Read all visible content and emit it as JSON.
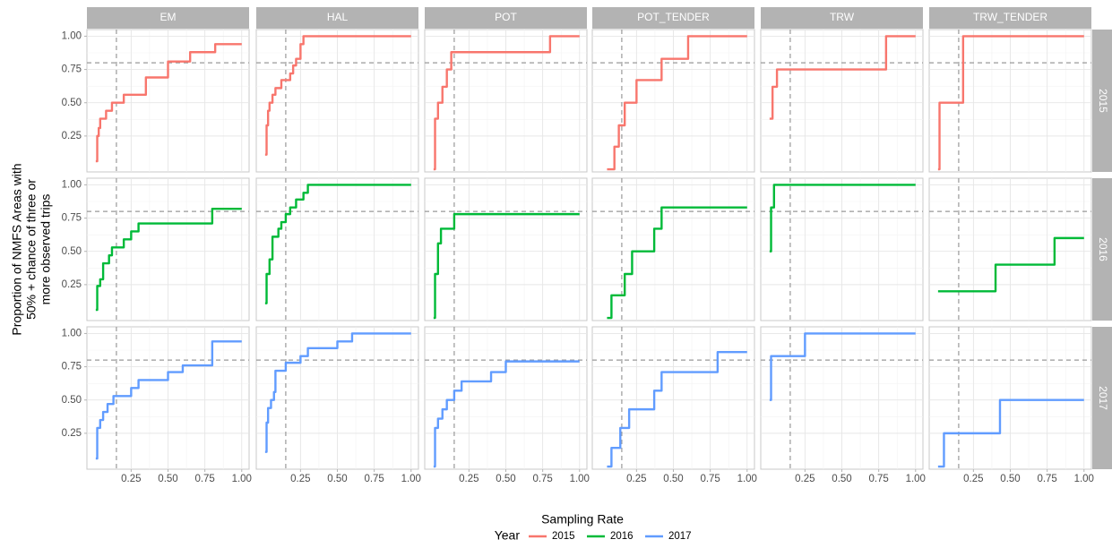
{
  "chart_data": {
    "type": "line",
    "step": true,
    "x_label": "Sampling Rate",
    "y_label": [
      "Proportion of NMFS Areas with",
      "50% + chance of three or",
      "more observed trips"
    ],
    "legend_title": "Year",
    "legend_position": "bottom",
    "columns": [
      "EM",
      "HAL",
      "POT",
      "POT_TENDER",
      "TRW",
      "TRW_TENDER"
    ],
    "xlim": [
      -0.05,
      1.05
    ],
    "ylim": [
      -0.02,
      1.05
    ],
    "xticks": [
      0.25,
      {
        "value": 0.5,
        "label": "0.50"
      },
      0.75,
      {
        "value": 1,
        "label": "1.00"
      }
    ],
    "yticks": [
      0.25,
      {
        "value": 0.5,
        "label": "0.50"
      },
      0.75,
      {
        "value": 1,
        "label": "1.00"
      }
    ],
    "grid": true,
    "minor_grid": true,
    "hline": 0.8,
    "vline": 0.15,
    "series": [
      {
        "name": "2015",
        "color": "#F8766D",
        "panels": [
          {
            "x": [
              0.01,
              0.02,
              0.03,
              0.04,
              0.08,
              0.12,
              0.2,
              0.35,
              0.5,
              0.65,
              0.82,
              1.0
            ],
            "values": [
              0.06,
              0.25,
              0.31,
              0.38,
              0.44,
              0.5,
              0.56,
              0.69,
              0.81,
              0.88,
              0.94,
              0.94
            ]
          },
          {
            "x": [
              0.01,
              0.02,
              0.03,
              0.04,
              0.06,
              0.08,
              0.12,
              0.18,
              0.2,
              0.22,
              0.25,
              0.27,
              1.0
            ],
            "values": [
              0.11,
              0.33,
              0.44,
              0.5,
              0.56,
              0.61,
              0.67,
              0.72,
              0.78,
              0.83,
              0.94,
              1,
              1
            ]
          },
          {
            "x": [
              0.01,
              0.02,
              0.04,
              0.07,
              0.1,
              0.13,
              0.8,
              1.0
            ],
            "values": [
              0.0,
              0.38,
              0.5,
              0.62,
              0.75,
              0.88,
              1,
              1
            ]
          },
          {
            "x": [
              0.05,
              0.1,
              0.13,
              0.17,
              0.25,
              0.42,
              0.6,
              1.0
            ],
            "values": [
              0,
              0.17,
              0.33,
              0.5,
              0.67,
              0.83,
              1,
              1
            ]
          },
          {
            "x": [
              0.01,
              0.03,
              0.06,
              0.8,
              1.0
            ],
            "values": [
              0.38,
              0.62,
              0.75,
              1,
              1
            ]
          },
          {
            "x": [
              0.01,
              0.02,
              0.18,
              1.0
            ],
            "values": [
              0,
              0.5,
              1,
              1
            ]
          }
        ]
      },
      {
        "name": "2016",
        "color": "#00BA38",
        "panels": [
          {
            "x": [
              0.01,
              0.02,
              0.04,
              0.06,
              0.1,
              0.12,
              0.2,
              0.25,
              0.3,
              0.8,
              1.0
            ],
            "values": [
              0.06,
              0.24,
              0.29,
              0.41,
              0.47,
              0.53,
              0.59,
              0.65,
              0.71,
              0.82,
              0.82
            ]
          },
          {
            "x": [
              0.01,
              0.02,
              0.04,
              0.06,
              0.1,
              0.12,
              0.15,
              0.18,
              0.22,
              0.27,
              0.3,
              1.0
            ],
            "values": [
              0.11,
              0.33,
              0.44,
              0.61,
              0.67,
              0.72,
              0.78,
              0.83,
              0.89,
              0.94,
              1,
              1
            ]
          },
          {
            "x": [
              0.01,
              0.02,
              0.04,
              0.06,
              0.15,
              1.0
            ],
            "values": [
              0,
              0.33,
              0.56,
              0.67,
              0.78,
              0.78
            ]
          },
          {
            "x": [
              0.05,
              0.08,
              0.17,
              0.22,
              0.37,
              0.42,
              1.0
            ],
            "values": [
              0,
              0.17,
              0.33,
              0.5,
              0.67,
              0.83,
              0.83
            ]
          },
          {
            "x": [
              0.01,
              0.02,
              0.04,
              1.0
            ],
            "values": [
              0.5,
              0.83,
              1,
              1
            ]
          },
          {
            "x": [
              0.01,
              0.4,
              0.8,
              1.0
            ],
            "values": [
              0.2,
              0.4,
              0.6,
              0.6
            ]
          }
        ]
      },
      {
        "name": "2017",
        "color": "#619CFF",
        "panels": [
          {
            "x": [
              0.01,
              0.02,
              0.04,
              0.06,
              0.09,
              0.13,
              0.25,
              0.3,
              0.5,
              0.6,
              0.8,
              1.0
            ],
            "values": [
              0.06,
              0.29,
              0.35,
              0.41,
              0.47,
              0.53,
              0.59,
              0.65,
              0.71,
              0.76,
              0.94,
              0.94
            ]
          },
          {
            "x": [
              0.01,
              0.02,
              0.03,
              0.05,
              0.07,
              0.08,
              0.15,
              0.25,
              0.3,
              0.5,
              0.6,
              1.0
            ],
            "values": [
              0.11,
              0.33,
              0.44,
              0.5,
              0.56,
              0.72,
              0.78,
              0.83,
              0.89,
              0.94,
              1,
              1
            ]
          },
          {
            "x": [
              0.01,
              0.02,
              0.04,
              0.07,
              0.1,
              0.15,
              0.2,
              0.4,
              0.5,
              1.0
            ],
            "values": [
              0,
              0.29,
              0.36,
              0.43,
              0.5,
              0.57,
              0.64,
              0.71,
              0.79,
              0.79
            ]
          },
          {
            "x": [
              0.05,
              0.08,
              0.14,
              0.2,
              0.37,
              0.42,
              0.8,
              1.0
            ],
            "values": [
              0,
              0.14,
              0.29,
              0.43,
              0.57,
              0.71,
              0.86,
              0.86
            ]
          },
          {
            "x": [
              0.01,
              0.02,
              0.25,
              1.0
            ],
            "values": [
              0.5,
              0.83,
              1,
              1
            ]
          },
          {
            "x": [
              0.01,
              0.05,
              0.43,
              1.0
            ],
            "values": [
              0,
              0.25,
              0.5,
              0.5
            ]
          }
        ]
      }
    ]
  }
}
